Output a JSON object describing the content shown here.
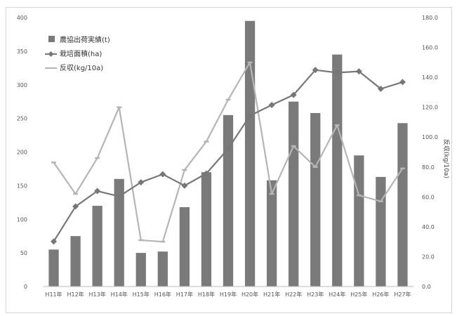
{
  "chart_data": {
    "type": "bar",
    "categories": [
      "H11年",
      "H12年",
      "H13年",
      "H14年",
      "H15年",
      "H16年",
      "H17年",
      "H18年",
      "H19年",
      "H20年",
      "H21年",
      "H22年",
      "H23年",
      "H24年",
      "H25年",
      "H26年",
      "H27年"
    ],
    "series": [
      {
        "name": "農協出荷実績(t)",
        "type": "bar",
        "axis": "left",
        "values": [
          55,
          75,
          120,
          160,
          50,
          52,
          118,
          170,
          255,
          395,
          158,
          275,
          258,
          345,
          195,
          163,
          243
        ]
      },
      {
        "name": "栽培面積(ha)",
        "type": "line",
        "axis": "left",
        "values": [
          67,
          119,
          142,
          134,
          155,
          167,
          150,
          168,
          205,
          254,
          270,
          285,
          322,
          318,
          320,
          294,
          304
        ]
      },
      {
        "name": "反収(kg/10a)",
        "type": "line",
        "axis": "right",
        "values": [
          83,
          62,
          86,
          120,
          31,
          30,
          78,
          97,
          125,
          150,
          62,
          94,
          80,
          108,
          61,
          57,
          79
        ]
      }
    ],
    "left_axis": {
      "ylim": [
        0,
        400
      ],
      "ticks": [
        "0",
        "50",
        "100",
        "150",
        "200",
        "250",
        "300",
        "350",
        "400"
      ]
    },
    "right_axis": {
      "ylim": [
        0,
        180
      ],
      "ticks": [
        "0.0",
        "20.0",
        "40.0",
        "60.0",
        "80.0",
        "100.0",
        "120.0",
        "140.0",
        "160.0",
        "180.0"
      ],
      "label": "反収(kg/10a)"
    },
    "legend": {
      "placement": "top-left"
    },
    "grid": false,
    "colors": {
      "bar": "#7a7a7a",
      "area_line": "#777777",
      "yield_line": "#b5b5b5"
    }
  }
}
